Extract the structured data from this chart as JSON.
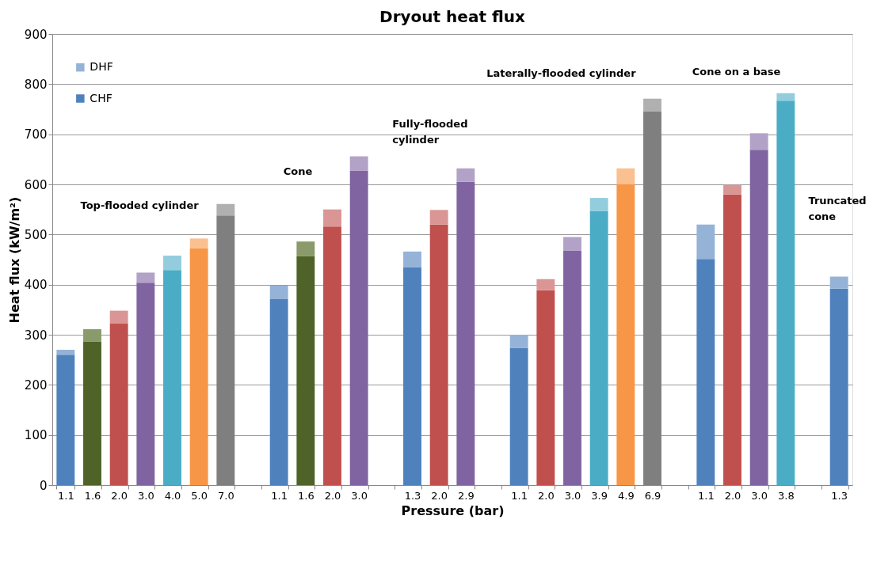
{
  "chart_data": {
    "type": "bar",
    "title": "Dryout heat flux",
    "xlabel": "Pressure (bar)",
    "ylabel": "Heat flux (kW/m²)",
    "categories": [
      "1.1",
      "1.6",
      "2.0",
      "3.0",
      "4.0",
      "5.0",
      "7.0",
      null,
      "1.1",
      "1.6",
      "2.0",
      "3.0",
      null,
      "1.3",
      "2.0",
      "2.9",
      null,
      "1.1",
      "2.0",
      "3.0",
      "3.9",
      "4.9",
      "6.9",
      null,
      "1.1",
      "2.0",
      "3.0",
      "3.8",
      null,
      "1.3"
    ],
    "stacked": true,
    "series": [
      {
        "name": "CHF",
        "color": "#4f81bd",
        "values": [
          260,
          286,
          322,
          404,
          429,
          473,
          538,
          null,
          371,
          457,
          516,
          627,
          null,
          435,
          520,
          605,
          null,
          274,
          389,
          468,
          547,
          600,
          746,
          null,
          451,
          580,
          669,
          767,
          null,
          392
        ],
        "colors": [
          "#4f81bd",
          "#4f6228",
          "#c0504d",
          "#8064a2",
          "#4bacc6",
          "#f79646",
          "#7f7f7f",
          "#4f81bd",
          "#4f81bd",
          "#4f6228",
          "#c0504d",
          "#8064a2",
          "#4f81bd",
          "#4f81bd",
          "#c0504d",
          "#8064a2",
          "#4f81bd",
          "#4f81bd",
          "#c0504d",
          "#8064a2",
          "#4bacc6",
          "#f79646",
          "#7f7f7f",
          "#4f81bd",
          "#4f81bd",
          "#c0504d",
          "#8064a2",
          "#4bacc6",
          "#4f81bd",
          "#4f81bd"
        ]
      },
      {
        "name": "DHF",
        "color": "#95b3d7",
        "values": [
          10,
          25,
          26,
          20,
          29,
          19,
          23,
          null,
          27,
          29,
          34,
          29,
          null,
          31,
          29,
          27,
          null,
          26,
          22,
          27,
          26,
          32,
          25,
          null,
          69,
          19,
          33,
          15,
          null,
          24
        ],
        "colors": [
          "#95b3d7",
          "#8a9a6a",
          "#d99694",
          "#b3a2c7",
          "#93cddd",
          "#fac090",
          "#b0b0b0",
          "#95b3d7",
          "#95b3d7",
          "#8a9a6a",
          "#d99694",
          "#b3a2c7",
          "#95b3d7",
          "#95b3d7",
          "#d99694",
          "#b3a2c7",
          "#95b3d7",
          "#95b3d7",
          "#d99694",
          "#b3a2c7",
          "#93cddd",
          "#fac090",
          "#b0b0b0",
          "#95b3d7",
          "#95b3d7",
          "#d99694",
          "#b3a2c7",
          "#93cddd",
          "#95b3d7",
          "#95b3d7"
        ]
      }
    ],
    "ylim": [
      0,
      900
    ],
    "yticks": [
      0,
      100,
      200,
      300,
      400,
      500,
      600,
      700,
      800,
      900
    ],
    "grid": "y",
    "legend": "top left",
    "annotations": [
      "Top-flooded cylinder",
      "Cone",
      "Fully-flooded cylinder",
      "Laterally-flooded cylinder",
      "Cone on a base",
      "Truncated cone"
    ]
  }
}
